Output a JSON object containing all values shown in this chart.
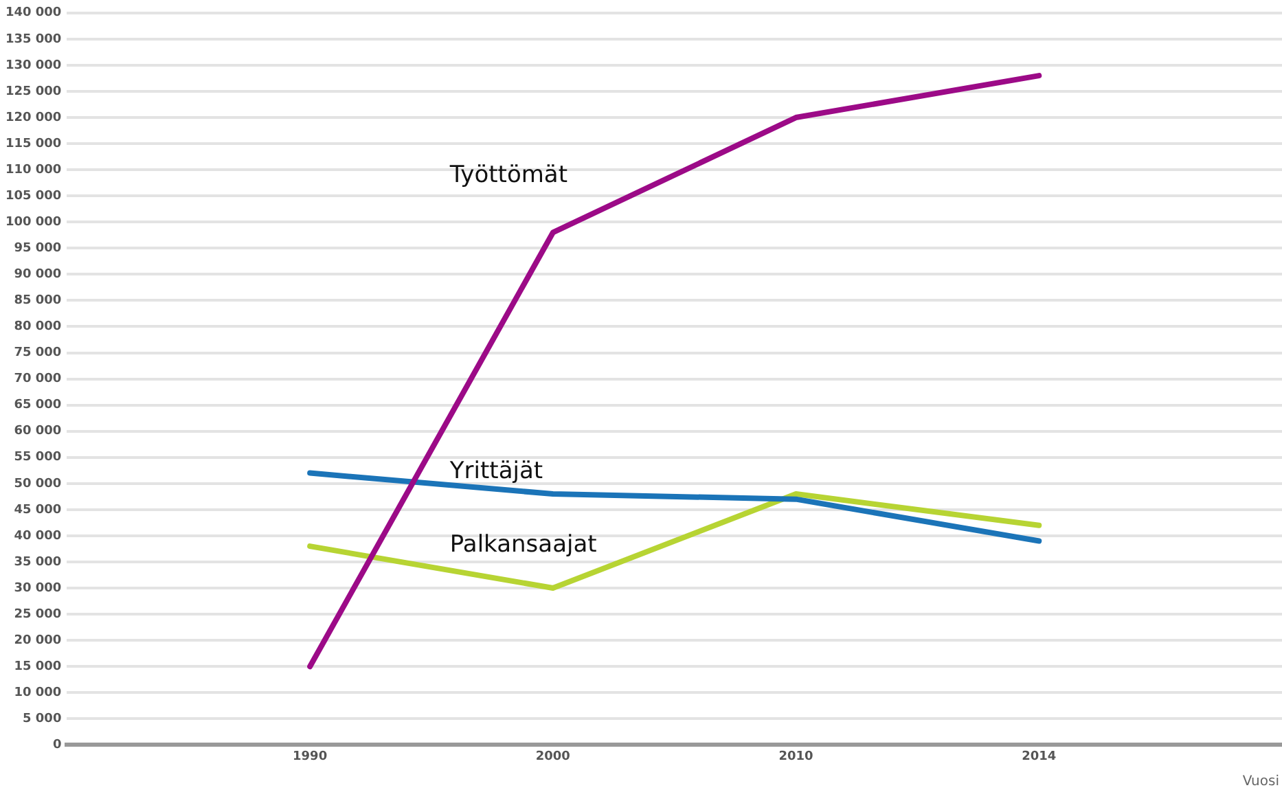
{
  "chart_data": {
    "type": "line",
    "xlabel": "Vuosi",
    "categories": [
      "1990",
      "2000",
      "2010",
      "2014"
    ],
    "series": [
      {
        "name": "Työttömät",
        "color": "#9c0a87",
        "values": [
          15000,
          98000,
          120000,
          128000
        ]
      },
      {
        "name": "Yrittäjät",
        "color": "#1b74b8",
        "values": [
          52000,
          48000,
          47000,
          39000
        ]
      },
      {
        "name": "Palkansaajat",
        "color": "#b7d433",
        "values": [
          38000,
          30000,
          48000,
          42000
        ]
      }
    ],
    "ylim": [
      0,
      140000
    ],
    "yticks": [
      {
        "value": 0,
        "label": "0"
      },
      {
        "value": 5000,
        "label": "5 000"
      },
      {
        "value": 10000,
        "label": "10 000"
      },
      {
        "value": 15000,
        "label": "15 000"
      },
      {
        "value": 20000,
        "label": "20 000"
      },
      {
        "value": 25000,
        "label": "25 000"
      },
      {
        "value": 30000,
        "label": "30 000"
      },
      {
        "value": 35000,
        "label": "35 000"
      },
      {
        "value": 40000,
        "label": "40 000"
      },
      {
        "value": 45000,
        "label": "45 000"
      },
      {
        "value": 50000,
        "label": "50 000"
      },
      {
        "value": 55000,
        "label": "55 000"
      },
      {
        "value": 60000,
        "label": "60 000"
      },
      {
        "value": 65000,
        "label": "65 000"
      },
      {
        "value": 70000,
        "label": "70 000"
      },
      {
        "value": 75000,
        "label": "75 000"
      },
      {
        "value": 80000,
        "label": "80 000"
      },
      {
        "value": 85000,
        "label": "85 000"
      },
      {
        "value": 90000,
        "label": "90 000"
      },
      {
        "value": 95000,
        "label": "95 000"
      },
      {
        "value": 100000,
        "label": "100 000"
      },
      {
        "value": 105000,
        "label": "105 000"
      },
      {
        "value": 110000,
        "label": "110 000"
      },
      {
        "value": 115000,
        "label": "115 000"
      },
      {
        "value": 120000,
        "label": "120 000"
      },
      {
        "value": 125000,
        "label": "125 000"
      },
      {
        "value": 130000,
        "label": "130 000"
      },
      {
        "value": 135000,
        "label": "135 000"
      },
      {
        "value": 140000,
        "label": "140 000"
      }
    ],
    "grid": "y",
    "marker": "none",
    "line_style": "solid",
    "legend": false
  }
}
